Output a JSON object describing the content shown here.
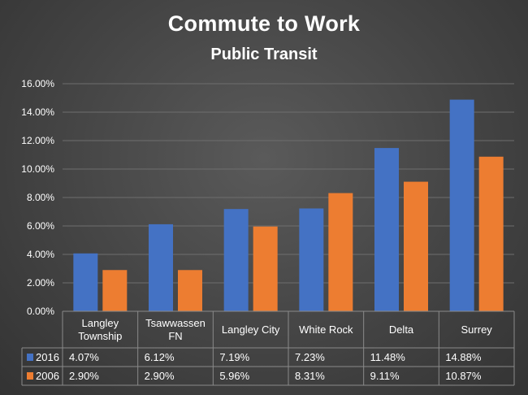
{
  "chart_data": {
    "type": "bar",
    "title": "Commute to Work",
    "subtitle": "Public Transit",
    "categories": [
      [
        "Langley",
        "Township"
      ],
      [
        "Tsawwassen",
        "FN"
      ],
      [
        "Langley City"
      ],
      [
        "White Rock"
      ],
      [
        "Delta"
      ],
      [
        "Surrey"
      ]
    ],
    "series": [
      {
        "name": "2016",
        "values": [
          4.07,
          6.12,
          7.19,
          7.23,
          11.48,
          14.88
        ],
        "labels": [
          "4.07%",
          "6.12%",
          "7.19%",
          "7.23%",
          "11.48%",
          "14.88%"
        ],
        "color": "#4472C4"
      },
      {
        "name": "2006",
        "values": [
          2.9,
          2.9,
          5.96,
          8.31,
          9.11,
          10.87
        ],
        "labels": [
          "2.90%",
          "2.90%",
          "5.96%",
          "8.31%",
          "9.11%",
          "10.87%"
        ],
        "color": "#ED7D31"
      }
    ],
    "ylim": [
      0,
      16
    ],
    "yticks": [
      "0.00%",
      "2.00%",
      "4.00%",
      "6.00%",
      "8.00%",
      "10.00%",
      "12.00%",
      "14.00%",
      "16.00%"
    ],
    "grid": true,
    "legend": "data-table"
  }
}
